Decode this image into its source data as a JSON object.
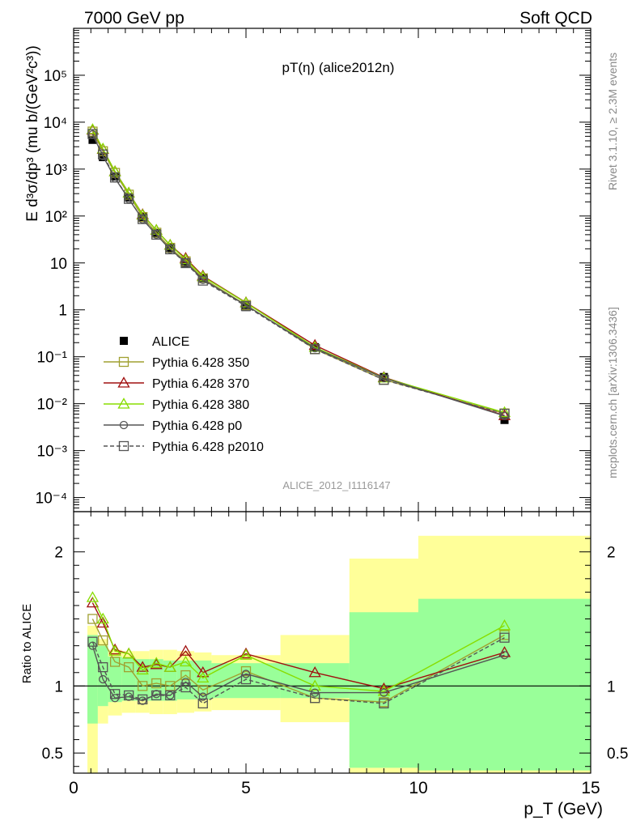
{
  "header": {
    "left": "7000 GeV pp",
    "right": "Soft QCD"
  },
  "side_text": {
    "rivet": "Rivet 3.1.10, ≥ 2.3M events",
    "mcplots": "mcplots.cern.ch [arXiv:1306.3436]"
  },
  "chart_data": [
    {
      "type": "scatter",
      "panel": "main",
      "title": "pT(η) (alice2012n)",
      "analysis_label": "ALICE_2012_I1116147",
      "ylabel": "E d³σ/dp³ (mu b/(GeV²c³))",
      "yscale": "log",
      "xlim": [
        0,
        15
      ],
      "ylim": [
        5e-05,
        1000000
      ],
      "ytick_labels": [
        "10⁻⁴",
        "10⁻³",
        "10⁻²",
        "10⁻¹",
        "1",
        "10",
        "10²",
        "10³",
        "10⁴",
        "10⁵"
      ],
      "legend_position": "lower-left",
      "x": [
        0.55,
        0.85,
        1.2,
        1.6,
        2.0,
        2.4,
        2.8,
        3.25,
        3.75,
        5.0,
        7.0,
        9.0,
        12.5
      ],
      "series": [
        {
          "name": "ALICE",
          "color": "#000000",
          "marker": "filled-square",
          "values": [
            4200,
            1800,
            700,
            250,
            95,
            43,
            21,
            10,
            4.8,
            1.15,
            0.16,
            0.037,
            0.0045
          ]
        },
        {
          "name": "Pythia 6.428 350",
          "color": "#a0a030",
          "marker": "open-square",
          "values": [
            6300,
            2400,
            830,
            285,
            95,
            44,
            21,
            10.8,
            4.7,
            1.27,
            0.146,
            0.0325,
            0.0062
          ]
        },
        {
          "name": "Pythia 6.428 370",
          "color": "#a01010",
          "marker": "open-triangle",
          "values": [
            6800,
            2650,
            890,
            310,
            108,
            50,
            24,
            12.6,
            5.3,
            1.43,
            0.176,
            0.0365,
            0.0056
          ]
        },
        {
          "name": "Pythia 6.428 380",
          "color": "#88dd00",
          "marker": "open-triangle",
          "values": [
            7000,
            2700,
            880,
            310,
            105,
            50,
            24,
            11.8,
            5.1,
            1.41,
            0.16,
            0.0355,
            0.0065
          ]
        },
        {
          "name": "Pythia 6.428 p0",
          "color": "#555555",
          "marker": "open-circle",
          "values": [
            5500,
            1890,
            640,
            230,
            85,
            40,
            19.5,
            10.3,
            4.4,
            1.25,
            0.152,
            0.0352,
            0.0055
          ]
        },
        {
          "name": "Pythia 6.428 p2010",
          "color": "#555555",
          "marker": "open-square",
          "dashed": true,
          "values": [
            5600,
            2050,
            660,
            232,
            86,
            40,
            19.5,
            9.9,
            4.2,
            1.2,
            0.145,
            0.0322,
            0.0061
          ]
        }
      ]
    },
    {
      "type": "scatter",
      "panel": "ratio",
      "ylabel": "Ratio to ALICE",
      "xlabel": "p_T (GeV)",
      "xlim": [
        0,
        15
      ],
      "ylim": [
        0.35,
        2.3
      ],
      "xtick_labels": [
        "0",
        "5",
        "10",
        "15"
      ],
      "ytick_labels": [
        "0.5",
        "1",
        "2"
      ],
      "x": [
        0.55,
        0.85,
        1.2,
        1.6,
        2.0,
        2.4,
        2.8,
        3.25,
        3.75,
        5.0,
        7.0,
        9.0,
        12.5
      ],
      "bands": {
        "bin_edges": [
          0.4,
          0.7,
          1.0,
          1.4,
          1.8,
          2.2,
          2.6,
          3.0,
          3.5,
          4.0,
          6.0,
          8.0,
          10.0,
          15.0
        ],
        "green": [
          [
            0.72,
            1.38
          ],
          [
            0.85,
            1.3
          ],
          [
            0.88,
            1.22
          ],
          [
            0.89,
            1.21
          ],
          [
            0.89,
            1.2
          ],
          [
            0.89,
            1.2
          ],
          [
            0.89,
            1.19
          ],
          [
            0.9,
            1.19
          ],
          [
            0.9,
            1.19
          ],
          [
            0.91,
            1.17
          ],
          [
            0.91,
            1.17
          ],
          [
            0.39,
            1.55
          ],
          [
            0.37,
            1.65
          ]
        ],
        "yellow": [
          [
            0.35,
            1.45
          ],
          [
            0.72,
            1.35
          ],
          [
            0.78,
            1.27
          ],
          [
            0.8,
            1.26
          ],
          [
            0.8,
            1.26
          ],
          [
            0.79,
            1.27
          ],
          [
            0.79,
            1.27
          ],
          [
            0.8,
            1.26
          ],
          [
            0.81,
            1.25
          ],
          [
            0.82,
            1.23
          ],
          [
            0.73,
            1.38
          ],
          [
            0.35,
            1.95
          ],
          [
            0.35,
            2.12
          ]
        ]
      },
      "series": [
        {
          "name": "Pythia 6.428 350",
          "color": "#a0a030",
          "marker": "open-square",
          "values": [
            1.5,
            1.34,
            1.18,
            1.14,
            1.0,
            1.02,
            1.0,
            1.08,
            0.97,
            1.11,
            0.91,
            0.88,
            1.38
          ]
        },
        {
          "name": "Pythia 6.428 370",
          "color": "#a01010",
          "marker": "open-triangle",
          "values": [
            1.62,
            1.47,
            1.27,
            1.24,
            1.14,
            1.16,
            1.14,
            1.26,
            1.1,
            1.24,
            1.1,
            0.98,
            1.25
          ]
        },
        {
          "name": "Pythia 6.428 380",
          "color": "#88dd00",
          "marker": "open-triangle",
          "values": [
            1.66,
            1.5,
            1.26,
            1.24,
            1.12,
            1.17,
            1.14,
            1.18,
            1.06,
            1.23,
            1.0,
            0.96,
            1.45
          ]
        },
        {
          "name": "Pythia 6.428 p0",
          "color": "#555555",
          "marker": "open-circle",
          "values": [
            1.3,
            1.05,
            0.91,
            0.92,
            0.89,
            0.94,
            0.93,
            1.03,
            0.92,
            1.09,
            0.95,
            0.95,
            1.23
          ]
        },
        {
          "name": "Pythia 6.428 p2010",
          "color": "#555555",
          "marker": "open-square",
          "dashed": true,
          "values": [
            1.33,
            1.14,
            0.94,
            0.93,
            0.9,
            0.93,
            0.93,
            0.99,
            0.87,
            1.05,
            0.91,
            0.87,
            1.36
          ]
        }
      ]
    }
  ]
}
